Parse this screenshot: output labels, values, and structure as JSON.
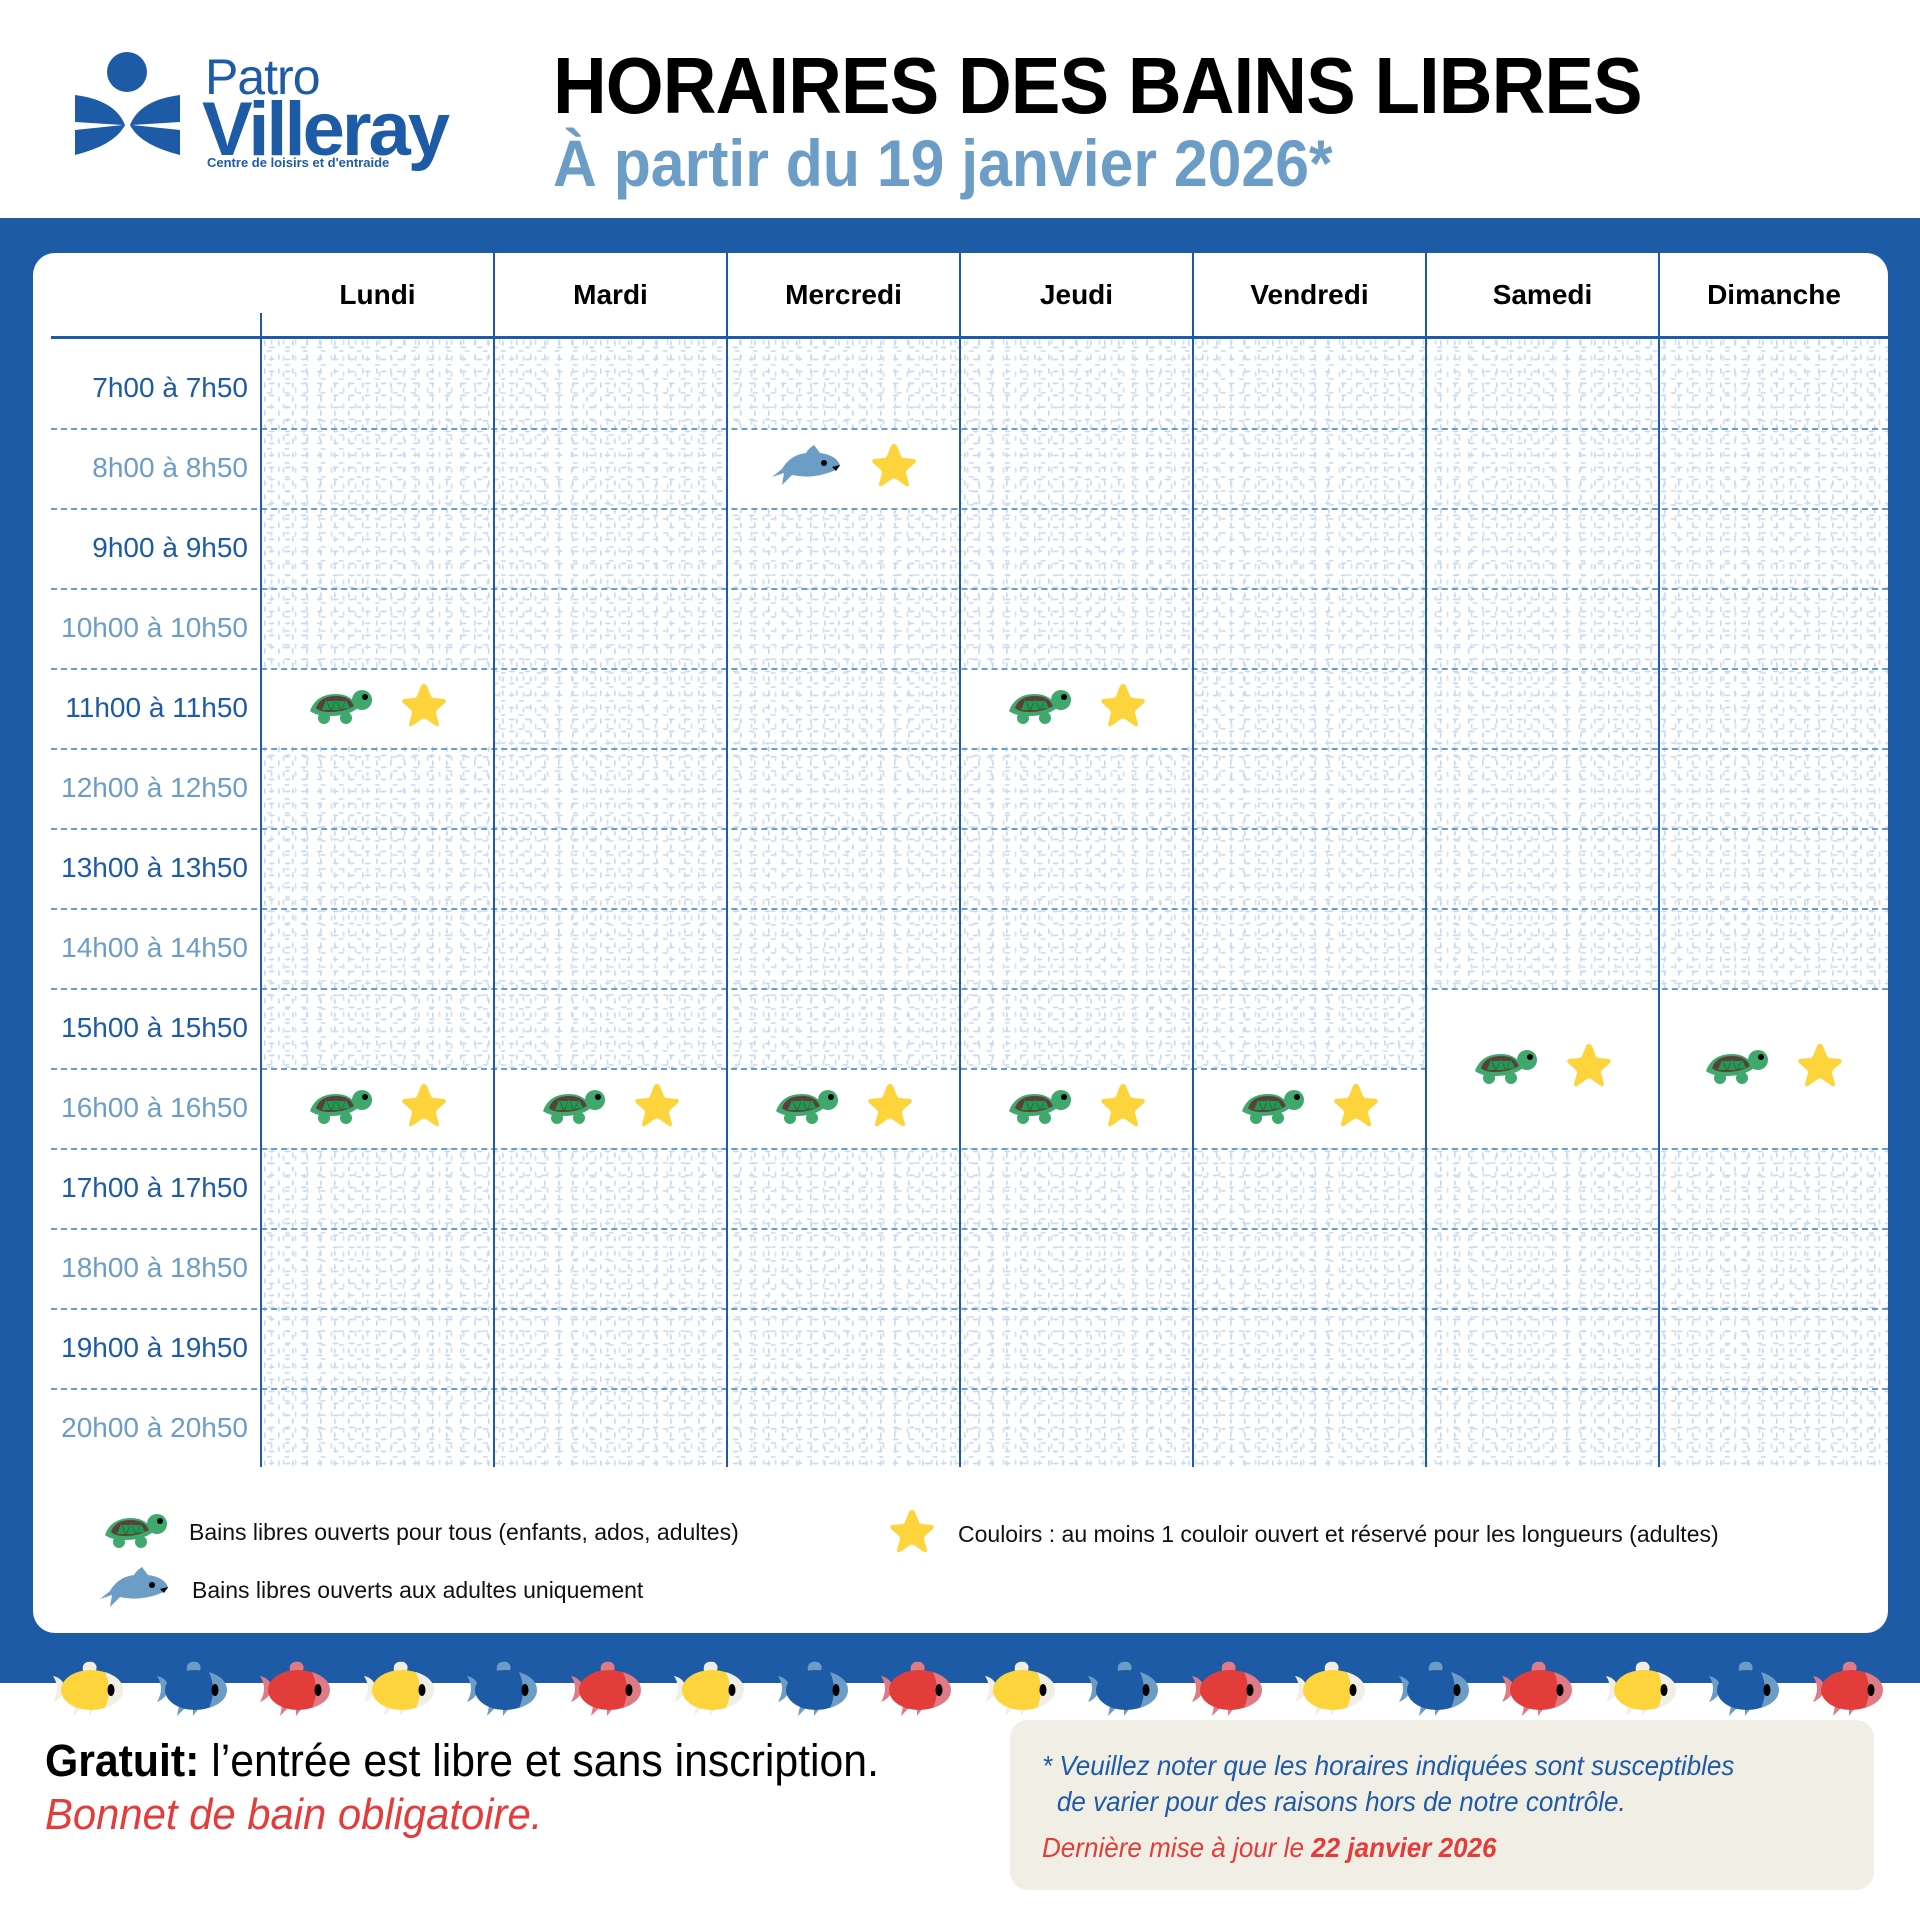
{
  "header": {
    "logo": {
      "line1": "Patro",
      "line2": "Villeray",
      "tagline": "Centre de loisirs et d'entraide"
    },
    "title": "HORAIRES DES BAINS LIBRES",
    "subtitle": "À partir du 19 janvier 2026*"
  },
  "colors": {
    "brand_blue": "#1e5ba6",
    "light_blue": "#6b9dc6",
    "turtle_green": "#3fa86d",
    "shell_brown": "#5c4037",
    "star_yellow": "#fdd43b",
    "red": "#e23d3a",
    "note_bg": "#f1eee5"
  },
  "schedule": {
    "days": [
      "Lundi",
      "Mardi",
      "Mercredi",
      "Jeudi",
      "Vendredi",
      "Samedi",
      "Dimanche"
    ],
    "times": [
      "7h00 à 7h50",
      "8h00 à 8h50",
      "9h00 à 9h50",
      "10h00 à 10h50",
      "11h00 à 11h50",
      "12h00 à 12h50",
      "13h00 à 13h50",
      "14h00 à 14h50",
      "15h00 à 15h50",
      "16h00 à 16h50",
      "17h00 à 17h50",
      "18h00 à 18h50",
      "19h00 à 19h50",
      "20h00 à 20h50"
    ],
    "sessions": [
      {
        "day": "Mercredi",
        "time": "8h00 à 8h50",
        "icons": [
          "shark-icon",
          "star-icon"
        ]
      },
      {
        "day": "Lundi",
        "time": "11h00 à 11h50",
        "icons": [
          "turtle-icon",
          "star-icon"
        ]
      },
      {
        "day": "Jeudi",
        "time": "11h00 à 11h50",
        "icons": [
          "turtle-icon",
          "star-icon"
        ]
      },
      {
        "day": "Lundi",
        "time": "16h00 à 16h50",
        "icons": [
          "turtle-icon",
          "star-icon"
        ]
      },
      {
        "day": "Mardi",
        "time": "16h00 à 16h50",
        "icons": [
          "turtle-icon",
          "star-icon"
        ]
      },
      {
        "day": "Mercredi",
        "time": "16h00 à 16h50",
        "icons": [
          "turtle-icon",
          "star-icon"
        ]
      },
      {
        "day": "Jeudi",
        "time": "16h00 à 16h50",
        "icons": [
          "turtle-icon",
          "star-icon"
        ]
      },
      {
        "day": "Vendredi",
        "time": "16h00 à 16h50",
        "icons": [
          "turtle-icon",
          "star-icon"
        ]
      },
      {
        "day": "Samedi",
        "time": "15h00 à 16h50",
        "icons": [
          "turtle-icon",
          "star-icon"
        ]
      },
      {
        "day": "Dimanche",
        "time": "15h00 à 16h50",
        "icons": [
          "turtle-icon",
          "star-icon"
        ]
      }
    ]
  },
  "legend": {
    "turtle": "Bains libres ouverts pour tous (enfants, ados, adultes)",
    "shark": "Bains libres ouverts aux adultes uniquement",
    "star": "Couloirs : au moins 1 couloir ouvert et réservé pour les longueurs (adultes)"
  },
  "decoration": {
    "fish_colors": [
      "yellow",
      "blue",
      "red",
      "yellow",
      "blue",
      "red",
      "yellow",
      "blue",
      "red",
      "yellow",
      "blue",
      "red",
      "yellow",
      "blue",
      "red",
      "yellow",
      "blue",
      "red"
    ]
  },
  "footer": {
    "free_label": "Gratuit:",
    "free_text": " l’entrée est libre et sans inscription.",
    "cap_text": "Bonnet de bain obligatoire.",
    "note_line1": "* Veuillez noter que les horaires indiquées sont susceptibles",
    "note_line2": "de varier pour des raisons hors de notre contrôle.",
    "update_prefix": "Dernière mise à jour le ",
    "update_date": "22 janvier 2026"
  }
}
